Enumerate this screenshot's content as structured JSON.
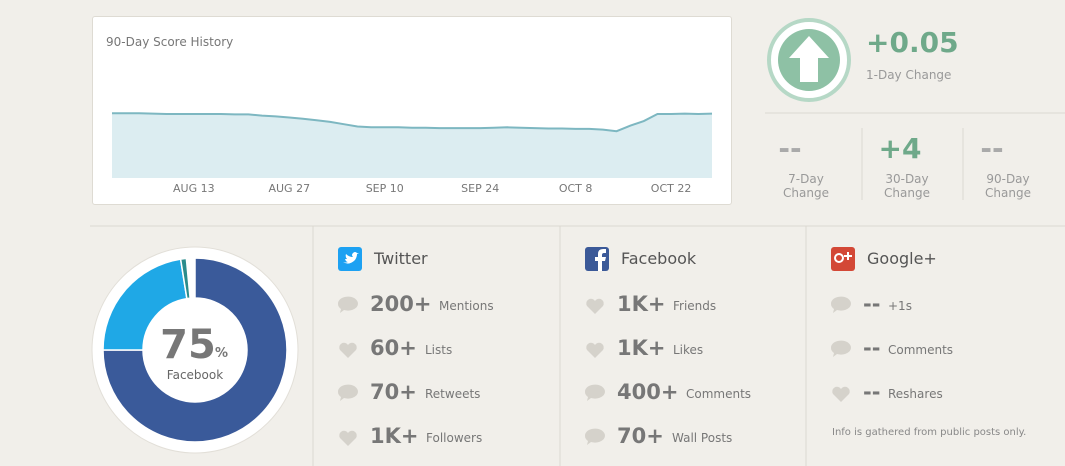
{
  "score_history": {
    "type": "line",
    "title": "90-Day Score History",
    "categories": [
      null,
      null,
      null,
      null,
      null,
      null,
      "AUG 13",
      null,
      null,
      null,
      null,
      null,
      null,
      "AUG 27",
      null,
      null,
      null,
      null,
      null,
      null,
      "SEP 10",
      null,
      null,
      null,
      null,
      null,
      null,
      "SEP 24",
      null,
      null,
      null,
      null,
      null,
      null,
      "OCT 8",
      null,
      null,
      null,
      null,
      null,
      null,
      "OCT 22",
      null,
      null,
      null
    ],
    "values": [
      83,
      83,
      83,
      82.5,
      82,
      82,
      82,
      82,
      82,
      81.5,
      81.5,
      80,
      79,
      77.5,
      76,
      74,
      72,
      69,
      66,
      65,
      65,
      65,
      64.5,
      64.5,
      64,
      64,
      64,
      64,
      64.5,
      65,
      64.5,
      64,
      63.5,
      63.5,
      63,
      63,
      62,
      60,
      67,
      73,
      82,
      82,
      82.5,
      82,
      82.5
    ],
    "ylim": [
      0,
      100
    ],
    "color": "#7db7c1"
  },
  "day_change": {
    "value": "+0.05",
    "label": "1-Day Change"
  },
  "period_changes": [
    {
      "value": "--",
      "label": "7-Day Change"
    },
    {
      "value": "+4",
      "label": "30-Day Change"
    },
    {
      "value": "--",
      "label": "90-Day Change"
    }
  ],
  "share": {
    "type": "pie",
    "values": [
      75,
      22.5,
      1
    ],
    "colors": [
      "#3a5a9a",
      "#1fa8e6",
      "#2a8c8c"
    ],
    "unit": "%",
    "center_label": "Facebook"
  },
  "networks": [
    {
      "name": "Twitter",
      "stats": [
        {
          "value": "200+",
          "label": "Mentions"
        },
        {
          "value": "60+",
          "label": "Lists"
        },
        {
          "value": "70+",
          "label": "Retweets"
        },
        {
          "value": "1K+",
          "label": "Followers"
        }
      ]
    },
    {
      "name": "Facebook",
      "stats": [
        {
          "value": "1K+",
          "label": "Friends"
        },
        {
          "value": "1K+",
          "label": "Likes"
        },
        {
          "value": "400+",
          "label": "Comments"
        },
        {
          "value": "70+",
          "label": "Wall Posts"
        }
      ]
    },
    {
      "name": "Google+",
      "stats": [
        {
          "value": "--",
          "label": "+1s"
        },
        {
          "value": "--",
          "label": "Comments"
        },
        {
          "value": "--",
          "label": "Reshares"
        }
      ]
    }
  ],
  "note": "Info is gathered from public posts only."
}
